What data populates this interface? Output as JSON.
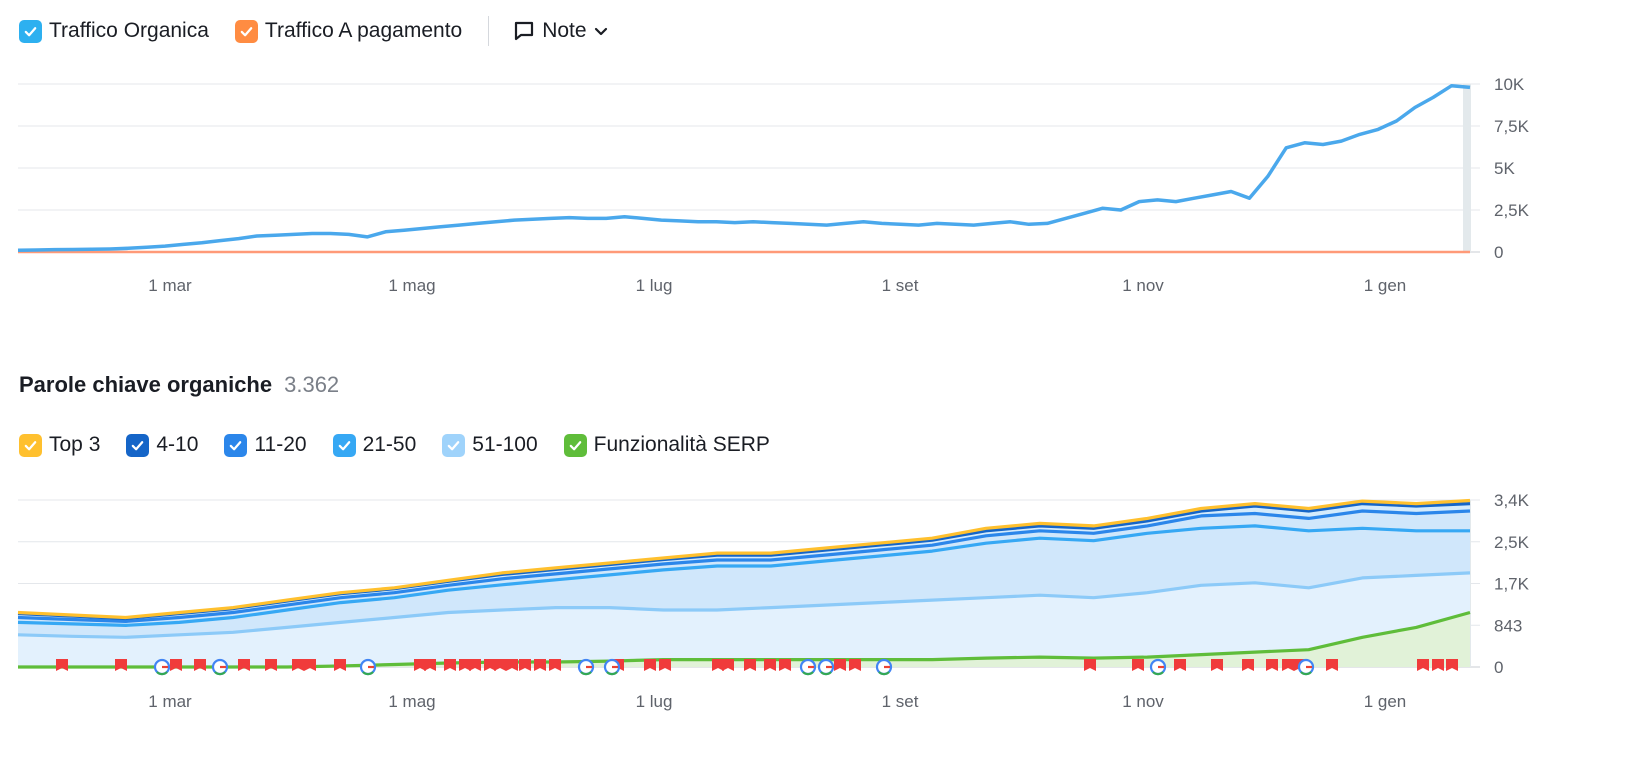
{
  "traffic_legend": {
    "items": [
      {
        "label": "Traffico Organica",
        "color": "#2db0f0"
      },
      {
        "label": "Traffico A pagamento",
        "color": "#ff8c42"
      }
    ],
    "note_label": "Note"
  },
  "keywords_section": {
    "title": "Parole chiave organiche",
    "count": "3.362",
    "legend": [
      {
        "label": "Top 3",
        "color": "#ffc02e"
      },
      {
        "label": "4-10",
        "color": "#1565c8"
      },
      {
        "label": "11-20",
        "color": "#2b86ea"
      },
      {
        "label": "21-50",
        "color": "#36a8f4"
      },
      {
        "label": "51-100",
        "color": "#9fd3fb"
      },
      {
        "label": "Funzionalità SERP",
        "color": "#5fbd3a"
      }
    ]
  },
  "chart_data": [
    {
      "type": "line",
      "x_tick_labels": [
        "1 mar",
        "1 mag",
        "1 lug",
        "1 set",
        "1 nov",
        "1 gen"
      ],
      "y_tick_labels": [
        "10K",
        "7,5K",
        "5K",
        "2,5K",
        "0"
      ],
      "ylim": [
        0,
        10000
      ],
      "grid": true,
      "series": [
        {
          "name": "Traffico Organica",
          "color": "#4aa8ec",
          "values": [
            100,
            120,
            140,
            150,
            160,
            180,
            220,
            280,
            350,
            450,
            550,
            680,
            800,
            950,
            1000,
            1050,
            1100,
            1100,
            1050,
            900,
            1200,
            1300,
            1400,
            1500,
            1600,
            1700,
            1800,
            1900,
            1950,
            2000,
            2050,
            2000,
            2000,
            2100,
            2000,
            1900,
            1850,
            1800,
            1800,
            1750,
            1800,
            1750,
            1700,
            1650,
            1600,
            1700,
            1800,
            1700,
            1650,
            1600,
            1700,
            1650,
            1600,
            1700,
            1800,
            1650,
            1700,
            2000,
            2300,
            2600,
            2500,
            3000,
            3100,
            3000,
            3200,
            3400,
            3600,
            3200,
            4500,
            6200,
            6500,
            6400,
            6600,
            7000,
            7300,
            7800,
            8600,
            9200,
            9900,
            9800
          ]
        },
        {
          "name": "Traffico A pagamento",
          "color": "#ff9a78",
          "values": [
            0,
            0,
            0,
            0,
            0,
            0,
            0,
            0,
            0,
            0,
            0,
            0,
            0,
            0,
            0,
            0,
            0,
            0,
            0,
            0,
            0,
            0,
            0,
            0,
            0,
            0,
            0,
            0,
            0,
            0,
            0,
            0,
            0,
            0,
            0,
            0,
            0,
            0,
            0,
            0,
            0,
            0,
            0,
            0,
            0,
            0,
            0,
            0,
            0,
            0,
            0,
            0,
            0,
            0,
            0,
            0,
            0,
            0,
            0,
            0,
            0,
            0,
            0,
            0,
            0,
            0,
            0,
            0,
            0,
            0,
            0,
            0,
            0,
            0,
            0,
            0,
            0,
            0,
            0,
            0
          ]
        }
      ]
    },
    {
      "type": "area",
      "x_tick_labels": [
        "1 mar",
        "1 mag",
        "1 lug",
        "1 set",
        "1 nov",
        "1 gen"
      ],
      "y_tick_labels": [
        "3,4K",
        "2,5K",
        "1,7K",
        "843",
        "0"
      ],
      "ylim": [
        0,
        3372
      ],
      "grid": true,
      "series": [
        {
          "name": "Top 3",
          "color": "#ffc02e",
          "values": [
            1100,
            1050,
            1000,
            1100,
            1200,
            1350,
            1500,
            1600,
            1750,
            1900,
            2000,
            2100,
            2200,
            2300,
            2300,
            2400,
            2500,
            2600,
            2800,
            2900,
            2850,
            3000,
            3200,
            3300,
            3200,
            3350,
            3300,
            3362
          ]
        },
        {
          "name": "4-10",
          "color": "#1565c8",
          "values": [
            1080,
            1030,
            980,
            1080,
            1180,
            1330,
            1480,
            1580,
            1730,
            1870,
            1970,
            2070,
            2170,
            2260,
            2260,
            2360,
            2460,
            2560,
            2750,
            2850,
            2800,
            2950,
            3150,
            3250,
            3150,
            3300,
            3250,
            3300
          ]
        },
        {
          "name": "11-20",
          "color": "#2b86ea",
          "values": [
            1000,
            960,
            920,
            1000,
            1100,
            1250,
            1400,
            1500,
            1650,
            1780,
            1880,
            1980,
            2080,
            2160,
            2160,
            2260,
            2360,
            2460,
            2650,
            2750,
            2700,
            2850,
            3050,
            3100,
            3000,
            3150,
            3100,
            3150
          ]
        },
        {
          "name": "21-50",
          "color": "#36a8f4",
          "values": [
            900,
            870,
            840,
            900,
            1000,
            1150,
            1300,
            1400,
            1550,
            1660,
            1760,
            1860,
            1960,
            2040,
            2040,
            2140,
            2240,
            2340,
            2500,
            2600,
            2550,
            2700,
            2800,
            2850,
            2750,
            2800,
            2750,
            2750
          ]
        },
        {
          "name": "51-100",
          "color": "#8ccaf8",
          "values": [
            650,
            620,
            600,
            650,
            700,
            800,
            900,
            1000,
            1100,
            1150,
            1200,
            1200,
            1150,
            1150,
            1200,
            1250,
            1300,
            1350,
            1400,
            1450,
            1400,
            1500,
            1650,
            1700,
            1600,
            1800,
            1850,
            1900
          ]
        },
        {
          "name": "Funzionalità SERP",
          "color": "#5fbd3a",
          "values": [
            0,
            0,
            0,
            0,
            0,
            0,
            20,
            50,
            80,
            100,
            100,
            120,
            150,
            150,
            150,
            150,
            150,
            150,
            180,
            200,
            180,
            200,
            250,
            300,
            350,
            600,
            800,
            1100
          ]
        }
      ]
    }
  ]
}
